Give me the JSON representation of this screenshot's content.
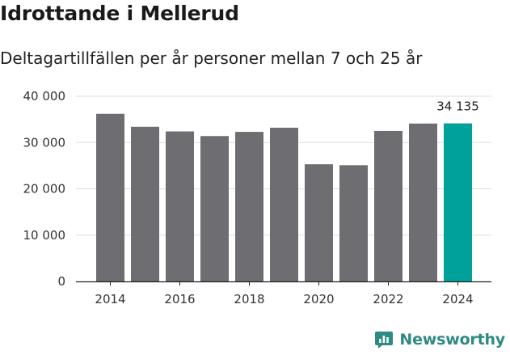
{
  "colors": {
    "bar": "#6e6d72",
    "highlight": "#00a19a",
    "grid": "#dcdcdc",
    "axis": "#222222",
    "brand": "#2e8a84"
  },
  "brand": {
    "name": "Newsworthy",
    "icon": "newsworthy-logo-icon"
  },
  "chart_data": {
    "type": "bar",
    "title": "Idrottande i Mellerud",
    "subtitle": "Deltagartillfällen per år personer mellan 7 och 25 år",
    "xlabel": "",
    "ylabel": "",
    "categories": [
      2014,
      2015,
      2016,
      2017,
      2018,
      2019,
      2020,
      2021,
      2022,
      2023,
      2024
    ],
    "values": [
      36200,
      33400,
      32400,
      31400,
      32300,
      33200,
      25300,
      25100,
      32500,
      34100,
      34135
    ],
    "highlight_index": 10,
    "highlight_label": "34 135",
    "ylim": [
      0,
      40000
    ],
    "yticks": [
      0,
      10000,
      20000,
      30000,
      40000
    ],
    "ytick_labels": [
      "0",
      "10 000",
      "20 000",
      "30 000",
      "40 000"
    ],
    "xticks": [
      2014,
      2016,
      2018,
      2020,
      2022,
      2024
    ],
    "xtick_labels": [
      "2014",
      "2016",
      "2018",
      "2020",
      "2022",
      "2024"
    ],
    "grid": true,
    "legend": "none"
  }
}
